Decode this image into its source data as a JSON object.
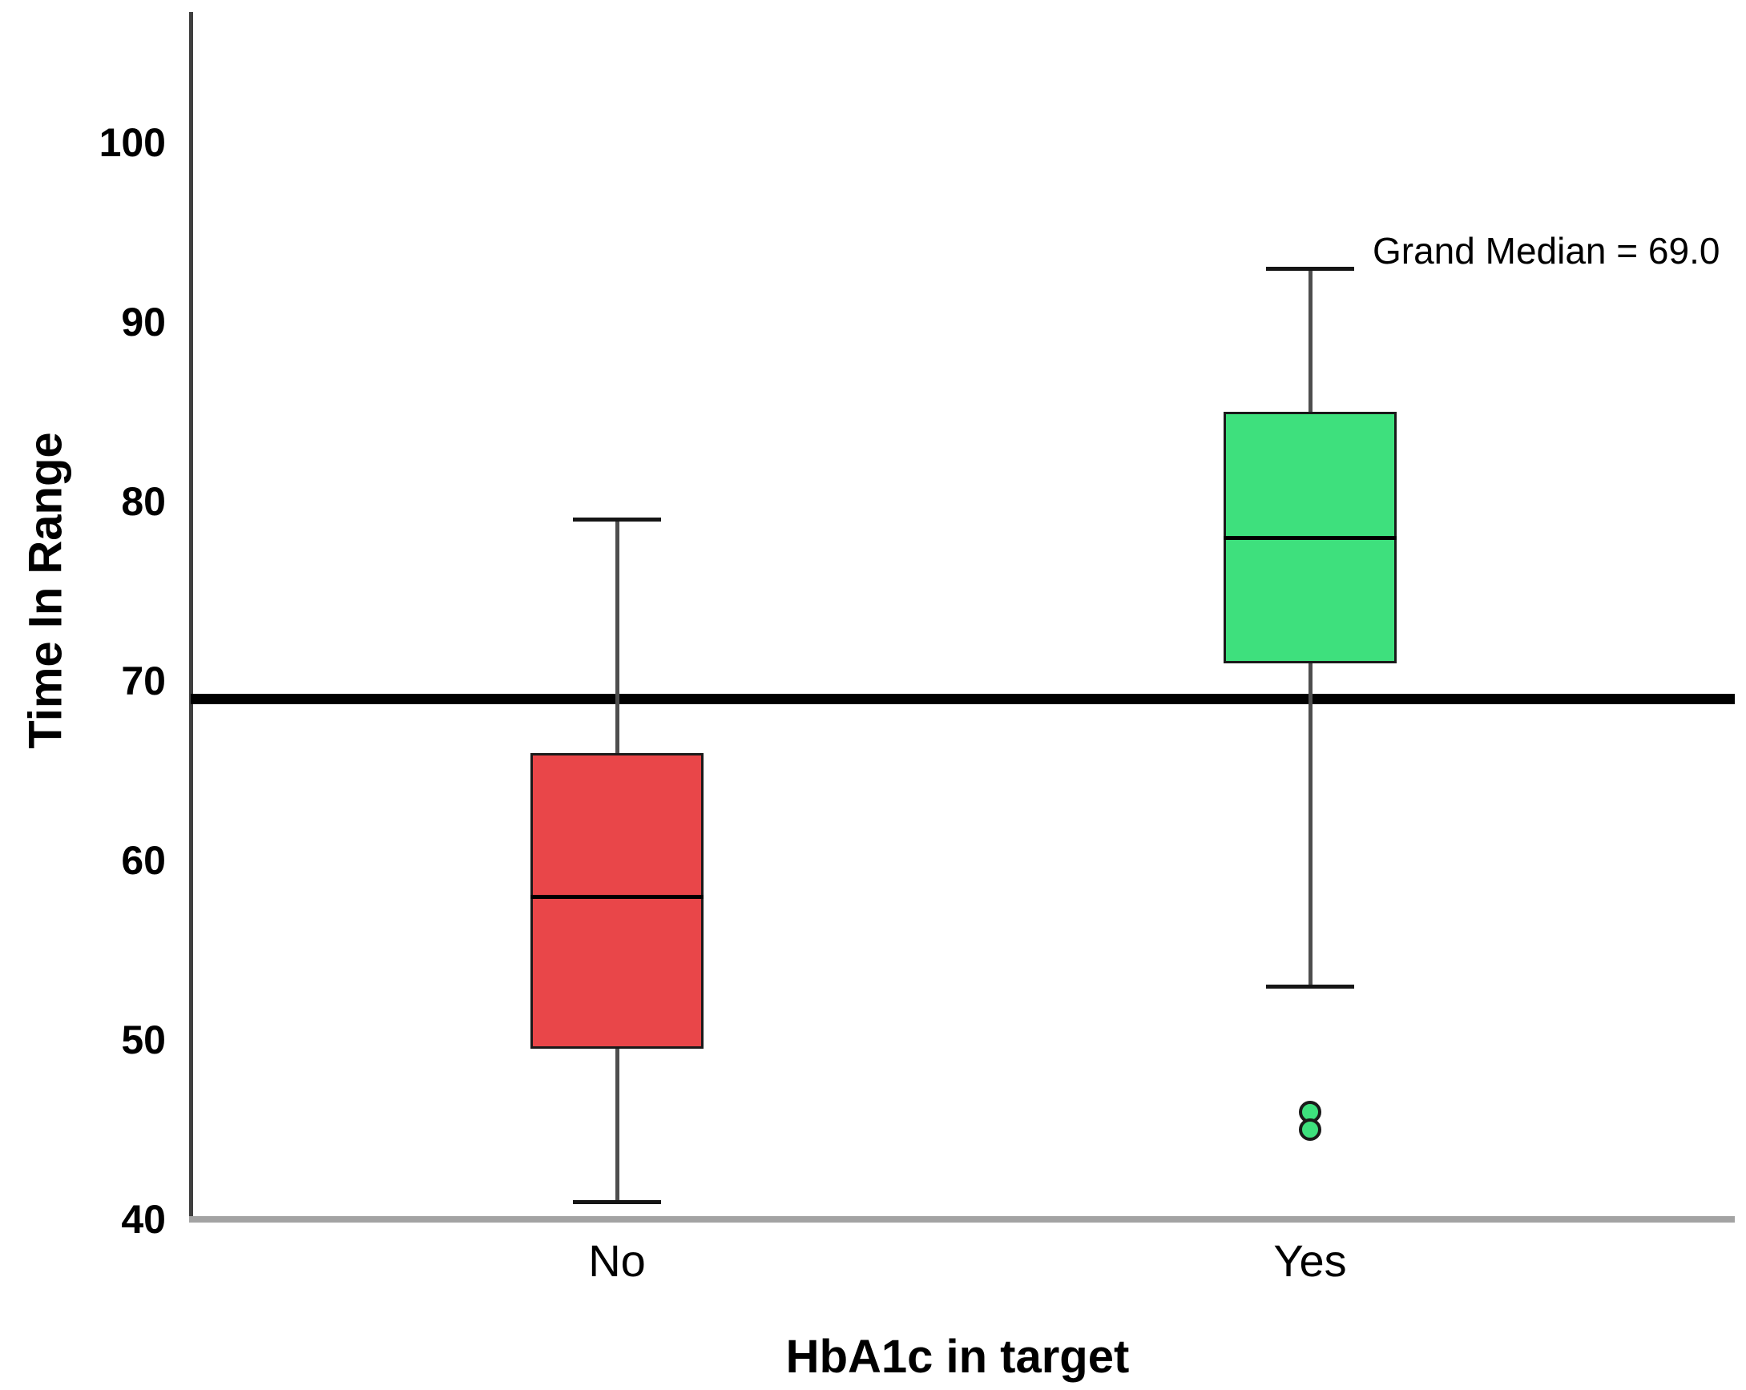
{
  "chart_data": {
    "type": "boxplot",
    "title": "",
    "xlabel": "HbA1c in target",
    "ylabel": "Time In Range",
    "categories": [
      "No",
      "Yes"
    ],
    "yticks": [
      40,
      50,
      60,
      70,
      80,
      90,
      100
    ],
    "ylim": [
      40,
      107
    ],
    "grid": false,
    "legend": "none",
    "series": [
      {
        "name": "No",
        "color": "#E94649",
        "whisker_low": 41,
        "q1": 49.5,
        "median": 58,
        "q3": 66,
        "whisker_high": 79,
        "outliers": []
      },
      {
        "name": "Yes",
        "color": "#3EE07D",
        "whisker_low": 53,
        "q1": 71,
        "median": 78,
        "q3": 85,
        "whisker_high": 93,
        "outliers": [
          46,
          45
        ]
      }
    ],
    "reference_line": {
      "value": 69.0,
      "label": "Grand Median = 69.0"
    }
  },
  "styles": {
    "background": "#FFFFFF",
    "text_color": "#000000",
    "box_border": "#1A1A1A",
    "whisker_stem": "#4E4E4E",
    "whisker_cap": "#151515",
    "median_line": "#000000",
    "reference_line_color": "#000000",
    "y_axis_color": "#3F3F3F",
    "x_axis_color": "#A3A3A3"
  }
}
